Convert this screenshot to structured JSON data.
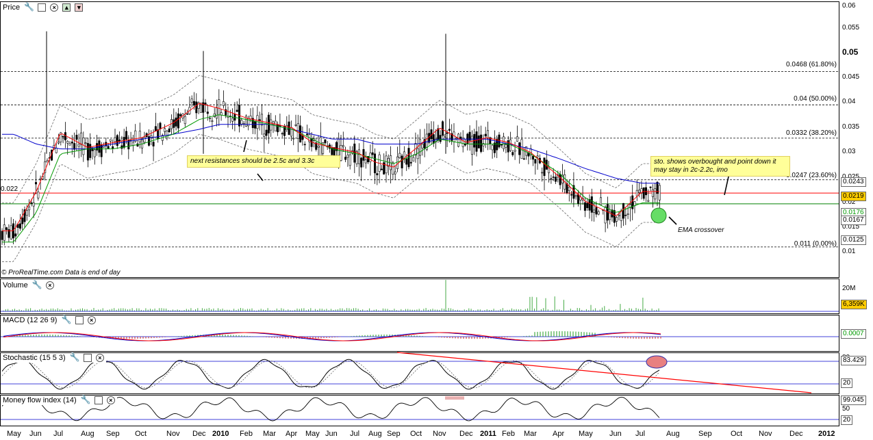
{
  "price_panel": {
    "title": "Price",
    "y_ticks": [
      "0.06",
      "0.055",
      "0.05",
      "0.045",
      "0.04",
      "0.035",
      "0.03",
      "0.025",
      "0.02",
      "0.015",
      "0.01"
    ],
    "left_label": "0.022",
    "value_boxes": [
      "0.0243",
      "0.0219",
      "0.0176",
      "0.0167",
      "0.0125"
    ],
    "fib_levels": [
      {
        "value": 0.0468,
        "label": "0.0468 (61.80%)"
      },
      {
        "value": 0.04,
        "label": "0.04 (50.00%)"
      },
      {
        "value": 0.0332,
        "label": "0.0332 (38.20%)"
      },
      {
        "value": 0.0247,
        "label": "0.0247 (23.60%)"
      },
      {
        "value": 0.011,
        "label": "0.011 (0.00%)"
      }
    ],
    "red_line": 0.022,
    "green_line": 0.0198,
    "notes": {
      "resistance": "next resistances should be 2.5c and 3.3c",
      "stochastic": "sto. shows overbought and point down it may stay in 2c-2.2c, imo",
      "ema": "EMA crossover"
    },
    "copyright": "© ProRealTime.com  Data is end of day"
  },
  "volume_panel": {
    "title": "Volume",
    "y_tick": "20M",
    "value_box": "6,359K"
  },
  "macd_panel": {
    "title": "MACD (12 26 9)",
    "value_box": "0.0007"
  },
  "stoch_panel": {
    "title": "Stochastic (15 5 3)",
    "y_ticks": [
      "80",
      "20"
    ],
    "value_box": "83.429",
    "low_box": "20"
  },
  "mfi_panel": {
    "title": "Money flow index (14)",
    "y_ticks": [
      "50"
    ],
    "value_box": "99.045",
    "low_box": "20"
  },
  "x_axis": [
    "May",
    "Jun",
    "Jul",
    "Aug",
    "Sep",
    "Oct",
    "Nov",
    "Dec",
    "2010",
    "Feb",
    "Mar",
    "Apr",
    "May",
    "Jun",
    "Jul",
    "Aug",
    "Sep",
    "Oct",
    "Nov",
    "Dec",
    "2011",
    "Feb",
    "Mar",
    "Apr",
    "May",
    "Jun",
    "Jul",
    "Aug",
    "Sep",
    "Oct",
    "Nov",
    "Dec",
    "2012"
  ],
  "colors": {
    "fib": "#000000",
    "red_line": "#ff0000",
    "green_line": "#008000",
    "ema_long": "#0000cc",
    "ema_red": "#ff0000",
    "ema_green": "#009900",
    "bands": "#666666",
    "note_bg": "#ffff99",
    "stoch_oval": "#e88080",
    "crossover_circle": "#66dd66"
  },
  "chart_data": {
    "type": "line",
    "title": "",
    "xlabel": "",
    "ylabel": "",
    "ylim": [
      0.008,
      0.061
    ],
    "x": [
      "May",
      "Jun",
      "Jul",
      "Aug",
      "Sep",
      "Oct",
      "Nov",
      "Dec",
      "2010",
      "Feb",
      "Mar",
      "Apr",
      "May",
      "Jun",
      "Jul",
      "Aug",
      "Sep",
      "Oct",
      "Nov",
      "Dec",
      "2011",
      "Feb",
      "Mar",
      "Apr",
      "May",
      "Jun",
      "Jul"
    ],
    "series": [
      {
        "values": [
          0.014,
          0.022,
          0.034,
          0.031,
          0.032,
          0.033,
          0.036,
          0.04,
          0.039,
          0.037,
          0.036,
          0.035,
          0.032,
          0.031,
          0.03,
          0.028,
          0.027,
          0.031,
          0.035,
          0.032,
          0.033,
          0.032,
          0.03,
          0.025,
          0.02,
          0.017,
          0.022
        ]
      },
      {
        "values": [
          0.012,
          0.018,
          0.03,
          0.031,
          0.031,
          0.032,
          0.034,
          0.037,
          0.038,
          0.037,
          0.036,
          0.035,
          0.033,
          0.031,
          0.03,
          0.029,
          0.028,
          0.03,
          0.033,
          0.032,
          0.032,
          0.032,
          0.03,
          0.026,
          0.021,
          0.018,
          0.02
        ]
      },
      {
        "values": [
          0.034,
          0.032,
          0.031,
          0.031,
          0.032,
          0.033,
          0.034,
          0.035,
          0.036,
          0.036,
          0.036,
          0.035,
          0.034,
          0.033,
          0.033,
          0.032,
          0.032,
          0.032,
          0.033,
          0.033,
          0.033,
          0.032,
          0.031,
          0.029,
          0.027,
          0.025,
          0.024
        ]
      }
    ]
  }
}
